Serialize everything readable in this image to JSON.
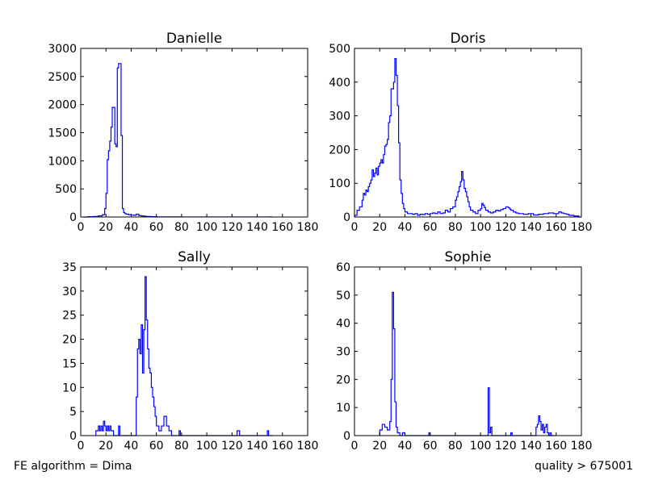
{
  "footer": {
    "left": "FE algorithm = Dima",
    "right": "quality > 675001"
  },
  "style": {
    "line_color": "#0000ff",
    "axis_color": "#000000"
  },
  "chart_data": [
    {
      "type": "step",
      "title": "Danielle",
      "xlabel": "",
      "ylabel": "",
      "xlim": [
        0,
        180
      ],
      "ylim": [
        0,
        3000
      ],
      "xticks": [
        0,
        20,
        40,
        60,
        80,
        100,
        120,
        140,
        160,
        180
      ],
      "yticks": [
        0,
        500,
        1000,
        1500,
        2000,
        2500,
        3000
      ],
      "grid": false,
      "x": [
        2,
        6,
        10,
        14,
        17,
        19,
        20,
        21,
        22,
        23,
        24,
        25,
        26,
        27,
        28,
        29,
        30,
        31,
        32,
        33,
        34,
        35,
        36,
        38,
        40,
        42,
        44,
        46,
        48,
        50,
        52,
        54,
        56,
        60,
        70,
        80,
        100,
        150
      ],
      "values": [
        0,
        5,
        10,
        20,
        40,
        150,
        420,
        1020,
        1180,
        1350,
        1600,
        1950,
        1950,
        1300,
        1250,
        2650,
        2730,
        2730,
        1450,
        150,
        80,
        60,
        50,
        40,
        35,
        30,
        50,
        25,
        20,
        15,
        10,
        10,
        5,
        3,
        2,
        1,
        1,
        2
      ]
    },
    {
      "type": "step",
      "title": "Doris",
      "xlabel": "",
      "ylabel": "",
      "xlim": [
        0,
        180
      ],
      "ylim": [
        0,
        500
      ],
      "xticks": [
        0,
        20,
        40,
        60,
        80,
        100,
        120,
        140,
        160,
        180
      ],
      "yticks": [
        0,
        100,
        200,
        300,
        400,
        500
      ],
      "grid": false,
      "x": [
        0,
        2,
        4,
        6,
        7,
        8,
        9,
        10,
        11,
        12,
        13,
        14,
        15,
        16,
        17,
        18,
        19,
        20,
        21,
        22,
        23,
        24,
        25,
        26,
        27,
        28,
        29,
        30,
        31,
        32,
        33,
        34,
        35,
        36,
        37,
        38,
        39,
        40,
        42,
        44,
        46,
        48,
        50,
        52,
        54,
        56,
        58,
        60,
        62,
        64,
        66,
        68,
        70,
        72,
        74,
        76,
        78,
        80,
        81,
        82,
        83,
        84,
        85,
        86,
        87,
        88,
        89,
        90,
        91,
        92,
        94,
        96,
        98,
        100,
        101,
        102,
        103,
        104,
        106,
        108,
        110,
        112,
        114,
        116,
        118,
        120,
        121,
        122,
        123,
        124,
        126,
        128,
        130,
        134,
        138,
        142,
        146,
        150,
        154,
        158,
        162,
        164,
        166,
        168,
        170,
        174,
        178
      ],
      "values": [
        5,
        20,
        30,
        50,
        70,
        65,
        80,
        75,
        90,
        100,
        110,
        140,
        120,
        130,
        145,
        125,
        150,
        160,
        170,
        160,
        185,
        210,
        215,
        230,
        280,
        300,
        380,
        380,
        400,
        470,
        420,
        330,
        220,
        110,
        70,
        40,
        25,
        15,
        10,
        10,
        8,
        10,
        5,
        8,
        7,
        10,
        8,
        10,
        12,
        10,
        15,
        10,
        12,
        20,
        15,
        25,
        30,
        50,
        60,
        75,
        90,
        105,
        135,
        110,
        85,
        75,
        60,
        45,
        30,
        20,
        15,
        10,
        20,
        25,
        40,
        35,
        28,
        20,
        15,
        12,
        15,
        20,
        18,
        22,
        25,
        30,
        30,
        28,
        24,
        20,
        15,
        12,
        10,
        8,
        10,
        6,
        8,
        10,
        12,
        10,
        15,
        12,
        10,
        8,
        5,
        3,
        0
      ]
    },
    {
      "type": "step",
      "title": "Sally",
      "xlabel": "",
      "ylabel": "",
      "xlim": [
        0,
        180
      ],
      "ylim": [
        0,
        35
      ],
      "xticks": [
        0,
        20,
        40,
        60,
        80,
        100,
        120,
        140,
        160,
        180
      ],
      "yticks": [
        0,
        5,
        10,
        15,
        20,
        25,
        30,
        35
      ],
      "grid": false,
      "x": [
        12,
        14,
        15,
        16,
        17,
        18,
        19,
        20,
        21,
        22,
        23,
        24,
        26,
        28,
        30,
        31,
        32,
        36,
        44,
        45,
        46,
        47,
        48,
        49,
        50,
        51,
        52,
        53,
        54,
        55,
        56,
        57,
        58,
        59,
        60,
        62,
        64,
        66,
        67,
        68,
        70,
        72,
        78,
        79,
        80,
        124,
        125,
        126,
        148,
        149,
        150
      ],
      "values": [
        1,
        2,
        1,
        2,
        1,
        3,
        2,
        1,
        2,
        1,
        2,
        1,
        0,
        0,
        2,
        0,
        0,
        0,
        8,
        18,
        20,
        17,
        23,
        13,
        22,
        33,
        24,
        18,
        14,
        13,
        10,
        8,
        6,
        4,
        2,
        1,
        2,
        4,
        4,
        2,
        1,
        0,
        1,
        0,
        0,
        1,
        1,
        0,
        1,
        0,
        0
      ]
    },
    {
      "type": "step",
      "title": "Sophie",
      "xlabel": "",
      "ylabel": "",
      "xlim": [
        0,
        180
      ],
      "ylim": [
        0,
        60
      ],
      "xticks": [
        0,
        20,
        40,
        60,
        80,
        100,
        120,
        140,
        160,
        180
      ],
      "yticks": [
        0,
        10,
        20,
        30,
        40,
        50,
        60
      ],
      "grid": false,
      "x": [
        20,
        22,
        24,
        26,
        28,
        29,
        30,
        31,
        32,
        33,
        34,
        36,
        38,
        40,
        41,
        59,
        60,
        61,
        106,
        107,
        108,
        109,
        110,
        124,
        125,
        126,
        144,
        145,
        146,
        147,
        148,
        149,
        150,
        151,
        152,
        153,
        154,
        155,
        156,
        157
      ],
      "values": [
        2,
        4,
        3,
        2,
        5,
        20,
        51,
        38,
        12,
        3,
        1,
        0,
        1,
        0,
        0,
        1,
        0,
        0,
        17,
        1,
        3,
        0,
        0,
        1,
        0,
        0,
        3,
        4,
        7,
        5,
        2,
        4,
        1,
        3,
        4,
        1,
        0,
        1,
        0,
        0
      ]
    }
  ]
}
